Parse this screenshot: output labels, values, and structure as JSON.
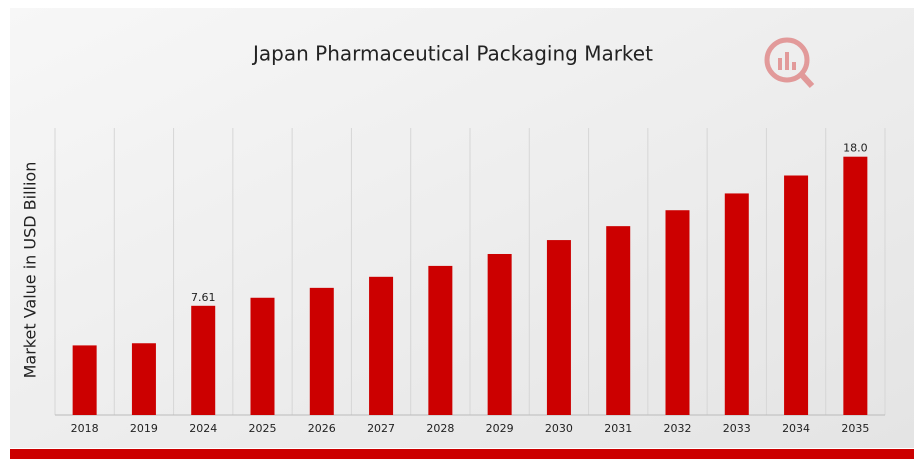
{
  "chart_data": {
    "type": "bar",
    "title": "Japan Pharmaceutical Packaging Market",
    "y_label": "Market Value in USD Billion",
    "categories": [
      "2018",
      "2019",
      "2024",
      "2025",
      "2026",
      "2027",
      "2028",
      "2029",
      "2030",
      "2031",
      "2032",
      "2033",
      "2034",
      "2035"
    ],
    "values": [
      4.85,
      5.0,
      7.61,
      8.17,
      8.86,
      9.63,
      10.39,
      11.22,
      12.19,
      13.16,
      14.27,
      15.44,
      16.69,
      18.0
    ],
    "value_labels": [
      null,
      null,
      "7.61",
      null,
      null,
      null,
      null,
      null,
      null,
      null,
      null,
      null,
      null,
      "18.0"
    ],
    "color": "#cc0000",
    "ylim": [
      0,
      20
    ],
    "grid": true
  }
}
